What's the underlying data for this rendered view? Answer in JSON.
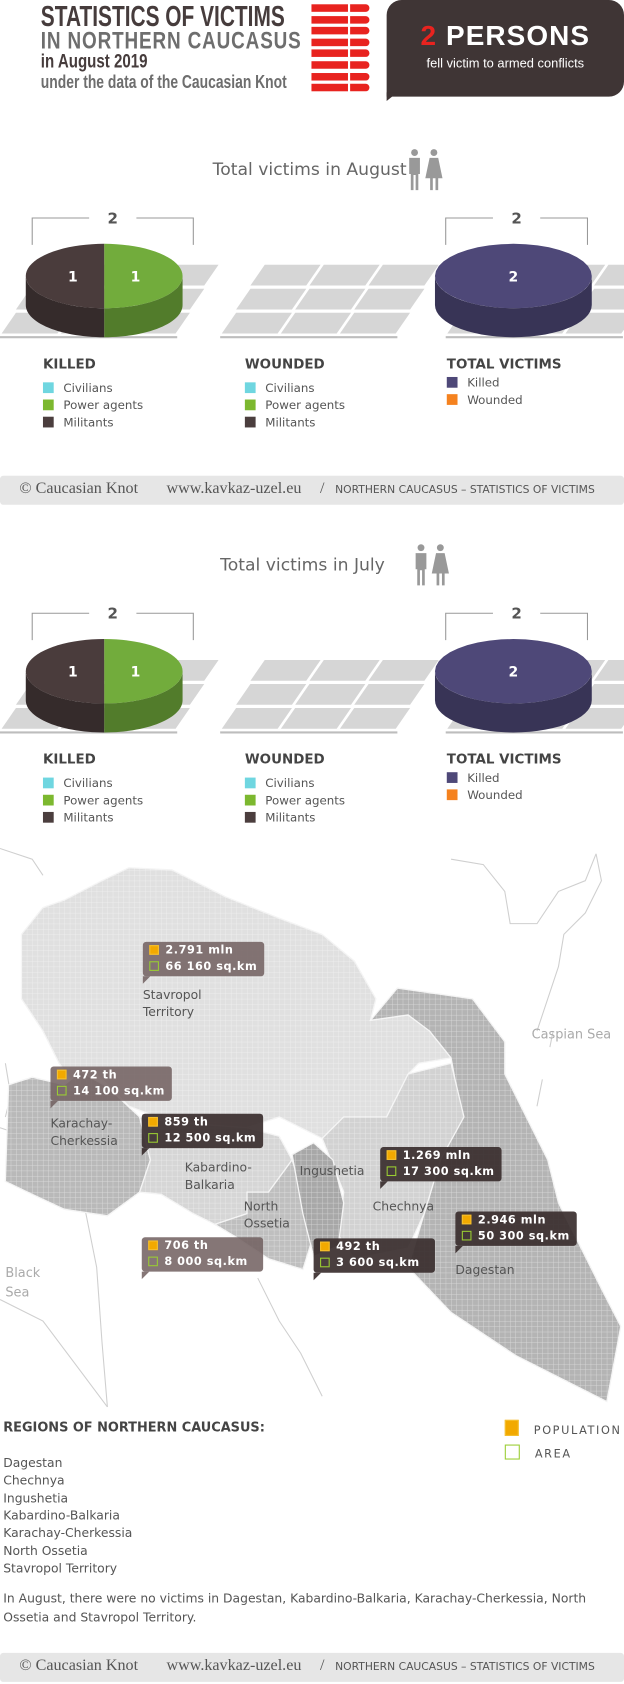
{
  "header": {
    "title_line1": "STATISTICS OF VICTIMS",
    "title_line2": "IN NORTHERN CAUCASUS",
    "title_line3": "in August 2019",
    "title_line4": "under the data of the Caucasian Knot",
    "badge_number": "2",
    "badge_unit": "PERSONS",
    "badge_caption": "fell victim to armed conflicts",
    "accent_color": "#e8231f"
  },
  "colors": {
    "civilians": "#6fd6e0",
    "power_agents": "#7cb82f",
    "militants": "#4b3e3e",
    "killed": "#4e4878",
    "wounded": "#f5821f"
  },
  "legend": {
    "killed_title": "KILLED",
    "wounded_title": "WOUNDED",
    "total_title": "TOTAL VICTIMS",
    "civilians": "Civilians",
    "power_agents": "Power agents",
    "militants": "Militants",
    "killed": "Killed",
    "wounded": "Wounded"
  },
  "chart_data": [
    {
      "type": "pie",
      "title": "Total victims in August",
      "charts": [
        {
          "name": "KILLED",
          "total": "2",
          "categories": [
            "Civilians",
            "Power agents",
            "Militants"
          ],
          "values": [
            0,
            1,
            1
          ]
        },
        {
          "name": "WOUNDED",
          "total": "",
          "categories": [
            "Civilians",
            "Power agents",
            "Militants"
          ],
          "values": [
            0,
            0,
            0
          ]
        },
        {
          "name": "TOTAL VICTIMS",
          "total": "2",
          "categories": [
            "Killed",
            "Wounded"
          ],
          "values": [
            2,
            0
          ]
        }
      ]
    },
    {
      "type": "pie",
      "title": "Total victims in July",
      "charts": [
        {
          "name": "KILLED",
          "total": "2",
          "categories": [
            "Civilians",
            "Power agents",
            "Militants"
          ],
          "values": [
            0,
            1,
            1
          ]
        },
        {
          "name": "WOUNDED",
          "total": "",
          "categories": [
            "Civilians",
            "Power agents",
            "Militants"
          ],
          "values": [
            0,
            0,
            0
          ]
        },
        {
          "name": "TOTAL VICTIMS",
          "total": "2",
          "categories": [
            "Killed",
            "Wounded"
          ],
          "values": [
            2,
            0
          ]
        }
      ]
    }
  ],
  "footer": {
    "copyright": "© Caucasian Knot",
    "url": "www.kavkaz-uzel.eu",
    "separator": "/",
    "caption": "NORTHERN CAUCASUS – STATISTICS OF VICTIMS"
  },
  "map": {
    "seas": {
      "caspian": "Caspian Sea",
      "black": "Black\nSea"
    },
    "regions": [
      {
        "label": "Stavropol\nTerritory",
        "population": "2.791 mln",
        "area": "66 160 sq.km",
        "style": "light"
      },
      {
        "label": "Karachay-\nCherkessia",
        "population": "472 th",
        "area": "14 100 sq.km",
        "style": "light"
      },
      {
        "label": "Kabardino-\nBalkaria",
        "population": "859 th",
        "area": "12 500 sq.km",
        "style": "dark"
      },
      {
        "label": "North\nOssetia",
        "population": "706 th",
        "area": "8 000 sq.km",
        "style": "light"
      },
      {
        "label": "Ingushetia",
        "population": "492 th",
        "area": "3 600 sq.km",
        "style": "dark"
      },
      {
        "label": "Chechnya",
        "population": "1.269 mln",
        "area": "17 300 sq.km",
        "style": "dark"
      },
      {
        "label": "Dagestan",
        "population": "2.946 mln",
        "area": "50 300 sq.km",
        "style": "dark"
      }
    ],
    "legend": {
      "population": "POPULATION",
      "area": "AREA",
      "population_color": "#f2a900",
      "area_color": "#9acd32"
    }
  },
  "regions_list": {
    "title": "REGIONS OF NORTHERN CAUCASUS:",
    "items": [
      "Dagestan",
      "Chechnya",
      "Ingushetia",
      "Kabardino-Balkaria",
      "Karachay-Cherkessia",
      "North Ossetia",
      "Stavropol Territory"
    ]
  },
  "note": "In August, there were no victims in Dagestan, Kabardino-Balkaria, Karachay-Cherkessia, North Ossetia and Stavropol Territory."
}
